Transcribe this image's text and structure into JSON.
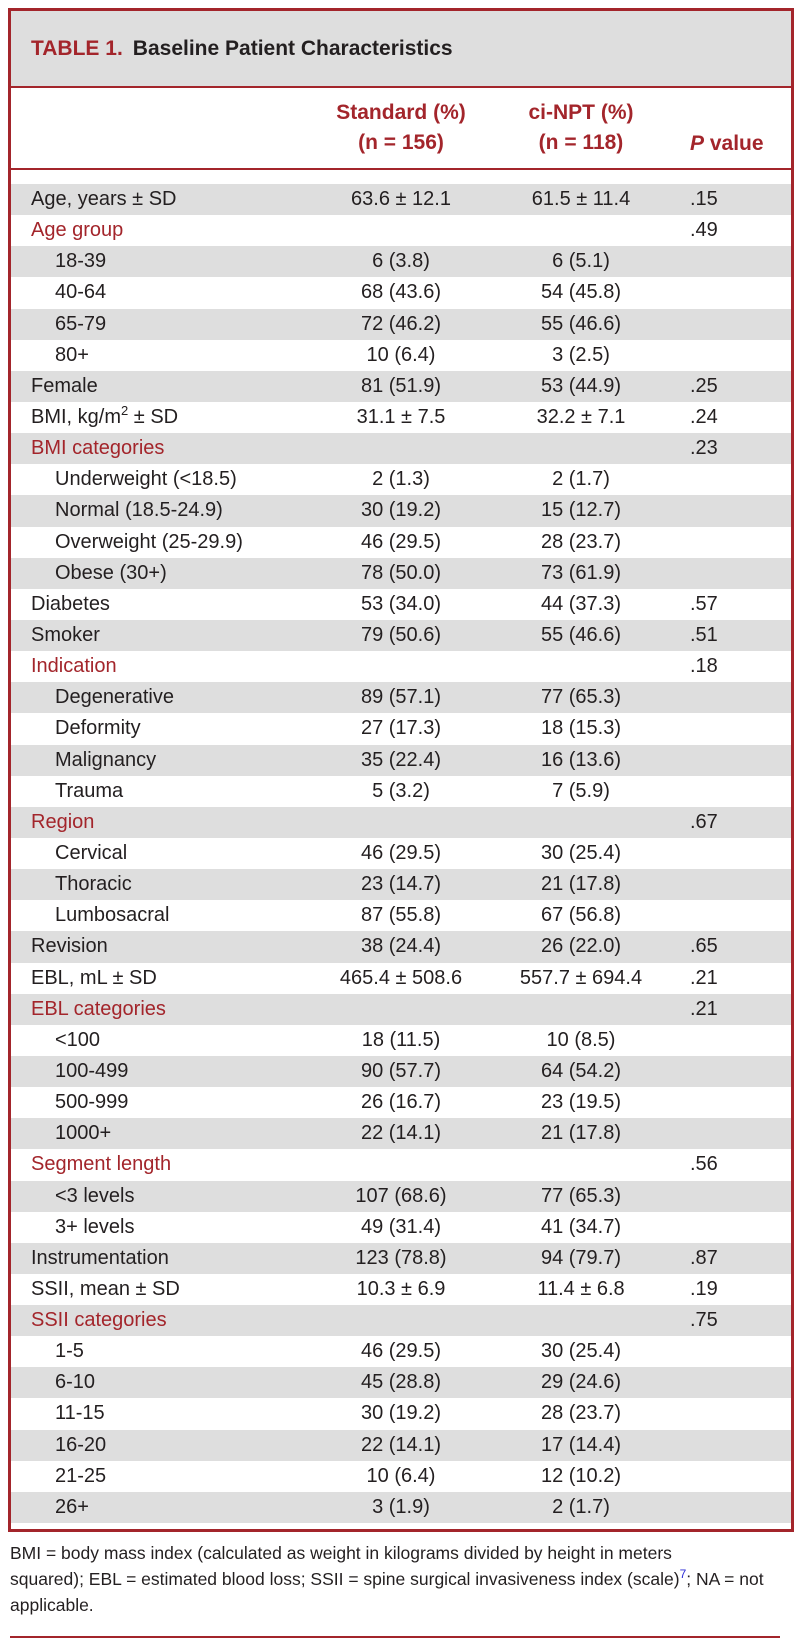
{
  "table": {
    "number": "TABLE 1.",
    "title": "Baseline Patient Characteristics",
    "headers": {
      "standard_line1": "Standard (%)",
      "standard_line2": "(n = 156)",
      "npt_line1": "ci-NPT (%)",
      "npt_line2": "(n = 118)",
      "p_italic": "P",
      "p_rest": " value"
    },
    "rows": [
      {
        "type": "main",
        "label": "Age, years ± SD",
        "standard": "63.6 ± 12.1",
        "npt": "61.5 ± 11.4",
        "p": ".15"
      },
      {
        "type": "cat",
        "label": "Age group",
        "standard": "",
        "npt": "",
        "p": ".49"
      },
      {
        "type": "sub",
        "label": "18-39",
        "standard": "6 (3.8)",
        "npt": "6 (5.1)",
        "p": ""
      },
      {
        "type": "sub",
        "label": "40-64",
        "standard": "68 (43.6)",
        "npt": "54 (45.8)",
        "p": ""
      },
      {
        "type": "sub",
        "label": "65-79",
        "standard": "72 (46.2)",
        "npt": "55 (46.6)",
        "p": ""
      },
      {
        "type": "sub",
        "label": "80+",
        "standard": "10 (6.4)",
        "npt": "3 (2.5)",
        "p": ""
      },
      {
        "type": "main",
        "label": "Female",
        "standard": "81 (51.9)",
        "npt": "53 (44.9)",
        "p": ".25"
      },
      {
        "type": "main",
        "label": "BMI, kg/m",
        "label_sup": "2",
        "label_after": " ± SD",
        "standard": "31.1 ± 7.5",
        "npt": "32.2 ± 7.1",
        "p": ".24"
      },
      {
        "type": "cat",
        "label": "BMI categories",
        "standard": "",
        "npt": "",
        "p": ".23"
      },
      {
        "type": "sub",
        "label": "Underweight (<18.5)",
        "standard": "2 (1.3)",
        "npt": "2 (1.7)",
        "p": ""
      },
      {
        "type": "sub",
        "label": "Normal (18.5-24.9)",
        "standard": "30 (19.2)",
        "npt": "15 (12.7)",
        "p": ""
      },
      {
        "type": "sub",
        "label": "Overweight (25-29.9)",
        "standard": "46 (29.5)",
        "npt": "28 (23.7)",
        "p": ""
      },
      {
        "type": "sub",
        "label": "Obese (30+)",
        "standard": "78 (50.0)",
        "npt": "73 (61.9)",
        "p": ""
      },
      {
        "type": "main",
        "label": "Diabetes",
        "standard": "53 (34.0)",
        "npt": "44 (37.3)",
        "p": ".57"
      },
      {
        "type": "main",
        "label": "Smoker",
        "standard": "79 (50.6)",
        "npt": "55 (46.6)",
        "p": ".51"
      },
      {
        "type": "cat",
        "label": "Indication",
        "standard": "",
        "npt": "",
        "p": ".18"
      },
      {
        "type": "sub",
        "label": "Degenerative",
        "standard": "89 (57.1)",
        "npt": "77 (65.3)",
        "p": ""
      },
      {
        "type": "sub",
        "label": "Deformity",
        "standard": "27 (17.3)",
        "npt": "18 (15.3)",
        "p": ""
      },
      {
        "type": "sub",
        "label": "Malignancy",
        "standard": "35 (22.4)",
        "npt": "16 (13.6)",
        "p": ""
      },
      {
        "type": "sub",
        "label": "Trauma",
        "standard": "5 (3.2)",
        "npt": "7 (5.9)",
        "p": ""
      },
      {
        "type": "cat",
        "label": "Region",
        "standard": "",
        "npt": "",
        "p": ".67"
      },
      {
        "type": "sub",
        "label": "Cervical",
        "standard": "46 (29.5)",
        "npt": "30 (25.4)",
        "p": ""
      },
      {
        "type": "sub",
        "label": "Thoracic",
        "standard": "23 (14.7)",
        "npt": "21 (17.8)",
        "p": ""
      },
      {
        "type": "sub",
        "label": "Lumbosacral",
        "standard": "87 (55.8)",
        "npt": "67 (56.8)",
        "p": ""
      },
      {
        "type": "main",
        "label": "Revision",
        "standard": "38 (24.4)",
        "npt": "26 (22.0)",
        "p": ".65"
      },
      {
        "type": "main",
        "label": "EBL, mL ± SD",
        "standard": "465.4 ± 508.6",
        "npt": "557.7 ± 694.4",
        "p": ".21"
      },
      {
        "type": "cat",
        "label": "EBL categories",
        "standard": "",
        "npt": "",
        "p": ".21"
      },
      {
        "type": "sub",
        "label": "<100",
        "standard": "18 (11.5)",
        "npt": "10 (8.5)",
        "p": ""
      },
      {
        "type": "sub",
        "label": "100-499",
        "standard": "90 (57.7)",
        "npt": "64 (54.2)",
        "p": ""
      },
      {
        "type": "sub",
        "label": "500-999",
        "standard": "26 (16.7)",
        "npt": "23 (19.5)",
        "p": ""
      },
      {
        "type": "sub",
        "label": "1000+",
        "standard": "22 (14.1)",
        "npt": "21 (17.8)",
        "p": ""
      },
      {
        "type": "cat",
        "label": "Segment length",
        "standard": "",
        "npt": "",
        "p": ".56"
      },
      {
        "type": "sub",
        "label": "<3 levels",
        "standard": "107 (68.6)",
        "npt": "77 (65.3)",
        "p": ""
      },
      {
        "type": "sub",
        "label": "3+ levels",
        "standard": "49 (31.4)",
        "npt": "41 (34.7)",
        "p": ""
      },
      {
        "type": "main",
        "label": "Instrumentation",
        "standard": "123 (78.8)",
        "npt": "94 (79.7)",
        "p": ".87"
      },
      {
        "type": "main",
        "label": "SSII, mean ± SD",
        "standard": "10.3 ± 6.9",
        "npt": "11.4 ± 6.8",
        "p": ".19"
      },
      {
        "type": "cat",
        "label": "SSII categories",
        "standard": "",
        "npt": "",
        "p": ".75"
      },
      {
        "type": "sub",
        "label": "1-5",
        "standard": "46 (29.5)",
        "npt": "30 (25.4)",
        "p": ""
      },
      {
        "type": "sub",
        "label": "6-10",
        "standard": "45 (28.8)",
        "npt": "29 (24.6)",
        "p": ""
      },
      {
        "type": "sub",
        "label": "11-15",
        "standard": "30 (19.2)",
        "npt": "28 (23.7)",
        "p": ""
      },
      {
        "type": "sub",
        "label": "16-20",
        "standard": "22 (14.1)",
        "npt": "17 (14.4)",
        "p": ""
      },
      {
        "type": "sub",
        "label": "21-25",
        "standard": "10 (6.4)",
        "npt": "12 (10.2)",
        "p": ""
      },
      {
        "type": "sub",
        "label": "26+",
        "standard": "3 (1.9)",
        "npt": "2 (1.7)",
        "p": ""
      }
    ]
  },
  "footnote": {
    "line1": "BMI = body mass index (calculated as weight in kilograms divided by height in meters",
    "line2": "squared); EBL = estimated blood loss; SSII = spine surgical invasiveness index (scale)",
    "line2_sup": "7",
    "line3": "; NA = not applicable."
  },
  "colors": {
    "accent": "#a3252b",
    "row_shade": "#dedede",
    "text": "#231f20",
    "reference_link": "#2b2bd6"
  }
}
